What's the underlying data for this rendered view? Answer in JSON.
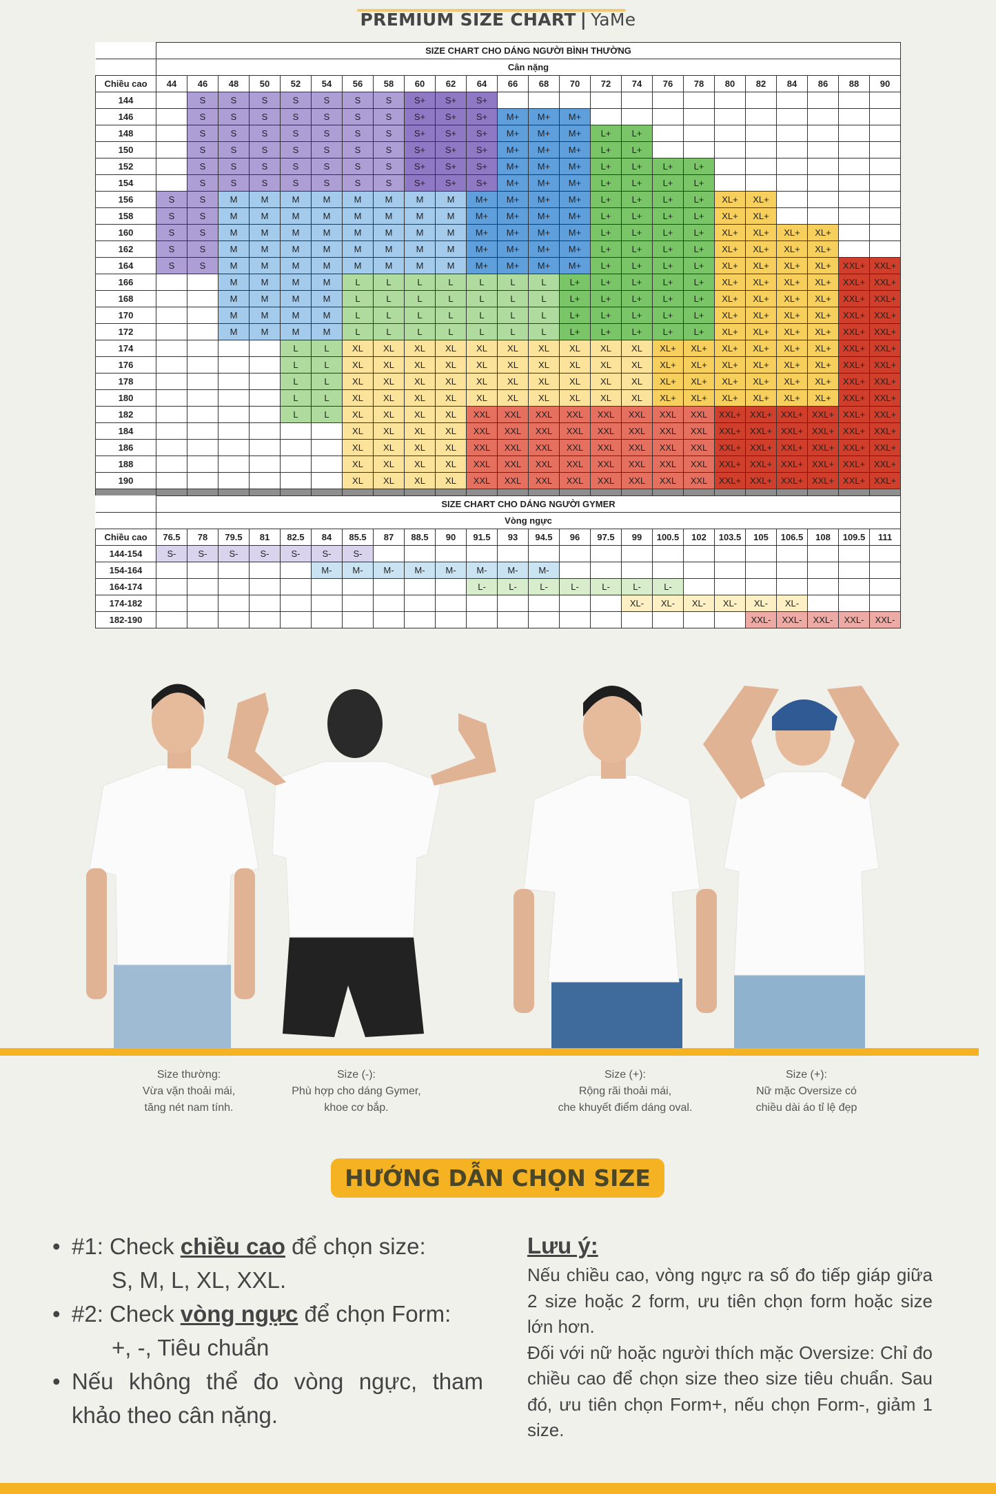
{
  "header": {
    "title": "PREMIUM SIZE CHART",
    "separator": "|",
    "brand": "YaMe",
    "accent_color": "#f3c872"
  },
  "size_colors": {
    "S": "#ad9fd5",
    "S+": "#8f79c5",
    "M": "#a4cbec",
    "M+": "#5e9fdc",
    "L": "#afdb9f",
    "L+": "#7ac567",
    "XL": "#fbe39b",
    "XL+": "#f7cf5d",
    "XXL": "#e6705f",
    "XXL+": "#cf3f2b",
    "S-": "#dad3ed",
    "M-": "#c9e3f3",
    "L-": "#d7edcb",
    "XL-": "#fdf0c5",
    "XXL-": "#eeaaa4"
  },
  "table1": {
    "title": "SIZE CHART CHO DÁNG NGƯỜI BÌNH THƯỜNG",
    "subtitle": "Cân nặng",
    "row_header": "Chiều cao",
    "columns": [
      "44",
      "46",
      "48",
      "50",
      "52",
      "54",
      "56",
      "58",
      "60",
      "62",
      "64",
      "66",
      "68",
      "70",
      "72",
      "74",
      "76",
      "78",
      "80",
      "82",
      "84",
      "86",
      "88",
      "90"
    ],
    "rows": [
      {
        "label": "144",
        "cells": [
          "",
          "S",
          "S",
          "S",
          "S",
          "S",
          "S",
          "S",
          "S+",
          "S+",
          "S+",
          "",
          "",
          "",
          "",
          "",
          "",
          "",
          "",
          "",
          "",
          "",
          "",
          ""
        ]
      },
      {
        "label": "146",
        "cells": [
          "",
          "S",
          "S",
          "S",
          "S",
          "S",
          "S",
          "S",
          "S+",
          "S+",
          "S+",
          "M+",
          "M+",
          "M+",
          "",
          "",
          "",
          "",
          "",
          "",
          "",
          "",
          "",
          ""
        ]
      },
      {
        "label": "148",
        "cells": [
          "",
          "S",
          "S",
          "S",
          "S",
          "S",
          "S",
          "S",
          "S+",
          "S+",
          "S+",
          "M+",
          "M+",
          "M+",
          "L+",
          "L+",
          "",
          "",
          "",
          "",
          "",
          "",
          "",
          ""
        ]
      },
      {
        "label": "150",
        "cells": [
          "",
          "S",
          "S",
          "S",
          "S",
          "S",
          "S",
          "S",
          "S+",
          "S+",
          "S+",
          "M+",
          "M+",
          "M+",
          "L+",
          "L+",
          "",
          "",
          "",
          "",
          "",
          "",
          "",
          ""
        ]
      },
      {
        "label": "152",
        "cells": [
          "",
          "S",
          "S",
          "S",
          "S",
          "S",
          "S",
          "S",
          "S+",
          "S+",
          "S+",
          "M+",
          "M+",
          "M+",
          "L+",
          "L+",
          "L+",
          "L+",
          "",
          "",
          "",
          "",
          "",
          ""
        ]
      },
      {
        "label": "154",
        "cells": [
          "",
          "S",
          "S",
          "S",
          "S",
          "S",
          "S",
          "S",
          "S+",
          "S+",
          "S+",
          "M+",
          "M+",
          "M+",
          "L+",
          "L+",
          "L+",
          "L+",
          "",
          "",
          "",
          "",
          "",
          ""
        ]
      },
      {
        "label": "156",
        "cells": [
          "S",
          "S",
          "M",
          "M",
          "M",
          "M",
          "M",
          "M",
          "M",
          "M",
          "M+",
          "M+",
          "M+",
          "M+",
          "L+",
          "L+",
          "L+",
          "L+",
          "XL+",
          "XL+",
          "",
          "",
          "",
          ""
        ]
      },
      {
        "label": "158",
        "cells": [
          "S",
          "S",
          "M",
          "M",
          "M",
          "M",
          "M",
          "M",
          "M",
          "M",
          "M+",
          "M+",
          "M+",
          "M+",
          "L+",
          "L+",
          "L+",
          "L+",
          "XL+",
          "XL+",
          "",
          "",
          "",
          ""
        ]
      },
      {
        "label": "160",
        "cells": [
          "S",
          "S",
          "M",
          "M",
          "M",
          "M",
          "M",
          "M",
          "M",
          "M",
          "M+",
          "M+",
          "M+",
          "M+",
          "L+",
          "L+",
          "L+",
          "L+",
          "XL+",
          "XL+",
          "XL+",
          "XL+",
          "",
          ""
        ]
      },
      {
        "label": "162",
        "cells": [
          "S",
          "S",
          "M",
          "M",
          "M",
          "M",
          "M",
          "M",
          "M",
          "M",
          "M+",
          "M+",
          "M+",
          "M+",
          "L+",
          "L+",
          "L+",
          "L+",
          "XL+",
          "XL+",
          "XL+",
          "XL+",
          "",
          ""
        ]
      },
      {
        "label": "164",
        "cells": [
          "S",
          "S",
          "M",
          "M",
          "M",
          "M",
          "M",
          "M",
          "M",
          "M",
          "M+",
          "M+",
          "M+",
          "M+",
          "L+",
          "L+",
          "L+",
          "L+",
          "XL+",
          "XL+",
          "XL+",
          "XL+",
          "XXL+",
          "XXL+"
        ]
      },
      {
        "label": "166",
        "cells": [
          "",
          "",
          "M",
          "M",
          "M",
          "M",
          "L",
          "L",
          "L",
          "L",
          "L",
          "L",
          "L",
          "L+",
          "L+",
          "L+",
          "L+",
          "L+",
          "XL+",
          "XL+",
          "XL+",
          "XL+",
          "XXL+",
          "XXL+"
        ]
      },
      {
        "label": "168",
        "cells": [
          "",
          "",
          "M",
          "M",
          "M",
          "M",
          "L",
          "L",
          "L",
          "L",
          "L",
          "L",
          "L",
          "L+",
          "L+",
          "L+",
          "L+",
          "L+",
          "XL+",
          "XL+",
          "XL+",
          "XL+",
          "XXL+",
          "XXL+"
        ]
      },
      {
        "label": "170",
        "cells": [
          "",
          "",
          "M",
          "M",
          "M",
          "M",
          "L",
          "L",
          "L",
          "L",
          "L",
          "L",
          "L",
          "L+",
          "L+",
          "L+",
          "L+",
          "L+",
          "XL+",
          "XL+",
          "XL+",
          "XL+",
          "XXL+",
          "XXL+"
        ]
      },
      {
        "label": "172",
        "cells": [
          "",
          "",
          "M",
          "M",
          "M",
          "M",
          "L",
          "L",
          "L",
          "L",
          "L",
          "L",
          "L",
          "L+",
          "L+",
          "L+",
          "L+",
          "L+",
          "XL+",
          "XL+",
          "XL+",
          "XL+",
          "XXL+",
          "XXL+"
        ]
      },
      {
        "label": "174",
        "cells": [
          "",
          "",
          "",
          "",
          "L",
          "L",
          "XL",
          "XL",
          "XL",
          "XL",
          "XL",
          "XL",
          "XL",
          "XL",
          "XL",
          "XL",
          "XL+",
          "XL+",
          "XL+",
          "XL+",
          "XL+",
          "XL+",
          "XXL+",
          "XXL+"
        ]
      },
      {
        "label": "176",
        "cells": [
          "",
          "",
          "",
          "",
          "L",
          "L",
          "XL",
          "XL",
          "XL",
          "XL",
          "XL",
          "XL",
          "XL",
          "XL",
          "XL",
          "XL",
          "XL+",
          "XL+",
          "XL+",
          "XL+",
          "XL+",
          "XL+",
          "XXL+",
          "XXL+"
        ]
      },
      {
        "label": "178",
        "cells": [
          "",
          "",
          "",
          "",
          "L",
          "L",
          "XL",
          "XL",
          "XL",
          "XL",
          "XL",
          "XL",
          "XL",
          "XL",
          "XL",
          "XL",
          "XL+",
          "XL+",
          "XL+",
          "XL+",
          "XL+",
          "XL+",
          "XXL+",
          "XXL+"
        ]
      },
      {
        "label": "180",
        "cells": [
          "",
          "",
          "",
          "",
          "L",
          "L",
          "XL",
          "XL",
          "XL",
          "XL",
          "XL",
          "XL",
          "XL",
          "XL",
          "XL",
          "XL",
          "XL+",
          "XL+",
          "XL+",
          "XL+",
          "XL+",
          "XL+",
          "XXL+",
          "XXL+"
        ]
      },
      {
        "label": "182",
        "cells": [
          "",
          "",
          "",
          "",
          "L",
          "L",
          "XL",
          "XL",
          "XL",
          "XL",
          "XXL",
          "XXL",
          "XXL",
          "XXL",
          "XXL",
          "XXL",
          "XXL",
          "XXL",
          "XXL+",
          "XXL+",
          "XXL+",
          "XXL+",
          "XXL+",
          "XXL+"
        ]
      },
      {
        "label": "184",
        "cells": [
          "",
          "",
          "",
          "",
          "",
          "",
          "XL",
          "XL",
          "XL",
          "XL",
          "XXL",
          "XXL",
          "XXL",
          "XXL",
          "XXL",
          "XXL",
          "XXL",
          "XXL",
          "XXL+",
          "XXL+",
          "XXL+",
          "XXL+",
          "XXL+",
          "XXL+"
        ]
      },
      {
        "label": "186",
        "cells": [
          "",
          "",
          "",
          "",
          "",
          "",
          "XL",
          "XL",
          "XL",
          "XL",
          "XXL",
          "XXL",
          "XXL",
          "XXL",
          "XXL",
          "XXL",
          "XXL",
          "XXL",
          "XXL+",
          "XXL+",
          "XXL+",
          "XXL+",
          "XXL+",
          "XXL+"
        ]
      },
      {
        "label": "188",
        "cells": [
          "",
          "",
          "",
          "",
          "",
          "",
          "XL",
          "XL",
          "XL",
          "XL",
          "XXL",
          "XXL",
          "XXL",
          "XXL",
          "XXL",
          "XXL",
          "XXL",
          "XXL",
          "XXL+",
          "XXL+",
          "XXL+",
          "XXL+",
          "XXL+",
          "XXL+"
        ]
      },
      {
        "label": "190",
        "cells": [
          "",
          "",
          "",
          "",
          "",
          "",
          "XL",
          "XL",
          "XL",
          "XL",
          "XXL",
          "XXL",
          "XXL",
          "XXL",
          "XXL",
          "XXL",
          "XXL",
          "XXL",
          "XXL+",
          "XXL+",
          "XXL+",
          "XXL+",
          "XXL+",
          "XXL+"
        ]
      }
    ]
  },
  "table2": {
    "title": "SIZE CHART CHO DÁNG NGƯỜI GYMER",
    "subtitle": "Vòng ngực",
    "row_header": "Chiều cao",
    "columns": [
      "76.5",
      "78",
      "79.5",
      "81",
      "82.5",
      "84",
      "85.5",
      "87",
      "88.5",
      "90",
      "91.5",
      "93",
      "94.5",
      "96",
      "97.5",
      "99",
      "100.5",
      "102",
      "103.5",
      "105",
      "106.5",
      "108",
      "109.5",
      "111"
    ],
    "rows": [
      {
        "label": "144-154",
        "cells": [
          "S-",
          "S-",
          "S-",
          "S-",
          "S-",
          "S-",
          "S-",
          "",
          "",
          "",
          "",
          "",
          "",
          "",
          "",
          "",
          "",
          "",
          "",
          "",
          "",
          "",
          "",
          ""
        ]
      },
      {
        "label": "154-164",
        "cells": [
          "",
          "",
          "",
          "",
          "",
          "M-",
          "M-",
          "M-",
          "M-",
          "M-",
          "M-",
          "M-",
          "M-",
          "",
          "",
          "",
          "",
          "",
          "",
          "",
          "",
          "",
          "",
          ""
        ]
      },
      {
        "label": "164-174",
        "cells": [
          "",
          "",
          "",
          "",
          "",
          "",
          "",
          "",
          "",
          "",
          "L-",
          "L-",
          "L-",
          "L-",
          "L-",
          "L-",
          "L-",
          "",
          "",
          "",
          "",
          "",
          "",
          ""
        ]
      },
      {
        "label": "174-182",
        "cells": [
          "",
          "",
          "",
          "",
          "",
          "",
          "",
          "",
          "",
          "",
          "",
          "",
          "",
          "",
          "",
          "XL-",
          "XL-",
          "XL-",
          "XL-",
          "XL-",
          "XL-",
          "",
          "",
          ""
        ]
      },
      {
        "label": "182-190",
        "cells": [
          "",
          "",
          "",
          "",
          "",
          "",
          "",
          "",
          "",
          "",
          "",
          "",
          "",
          "",
          "",
          "",
          "",
          "",
          "",
          "XXL-",
          "XXL-",
          "XXL-",
          "XXL-",
          "XXL-"
        ]
      }
    ]
  },
  "captions": [
    {
      "title": "Size thường:",
      "line1": "Vừa vặn thoải mái,",
      "line2": "tăng nét nam tính."
    },
    {
      "title": "Size (-):",
      "line1": "Phù hợp cho dáng Gymer,",
      "line2": "khoe cơ bắp."
    },
    {
      "title": "Size (+):",
      "line1": "Rộng rãi thoải mái,",
      "line2": "che khuyết điểm dáng oval."
    },
    {
      "title": "Size (+):",
      "line1": "Nữ mặc Oversize có",
      "line2": "chiều dài áo tỉ lệ đẹp"
    }
  ],
  "guide": {
    "heading": "HƯỚNG DẪN CHỌN SIZE",
    "step1": {
      "prefix": "#1: Check ",
      "emphasis": "chiều cao",
      "suffix": " để chọn size:",
      "detail": "S, M, L, XL, XXL."
    },
    "step2": {
      "prefix": "#2: Check ",
      "emphasis": "vòng ngực",
      "suffix": " để chọn Form:",
      "detail": "+, -, Tiêu chuẩn"
    },
    "step3": {
      "line1": "Nếu không thể đo vòng ngực, tham",
      "line2": "khảo theo cân nặng."
    },
    "note_title": "Lưu ý:",
    "note_p1": "Nếu chiều cao, vòng ngực ra số đo tiếp giáp giữa 2 size hoặc 2 form, ưu tiên chọn form hoặc size lớn hơn.",
    "note_p2": "Đối với nữ hoặc người thích mặc Oversize: Chỉ đo chiều cao để chọn size theo size tiêu chuẩn. Sau đó, ưu tiên chọn Form+, nếu chọn Form-, giảm 1 size."
  },
  "accent_color": "#f5b324"
}
